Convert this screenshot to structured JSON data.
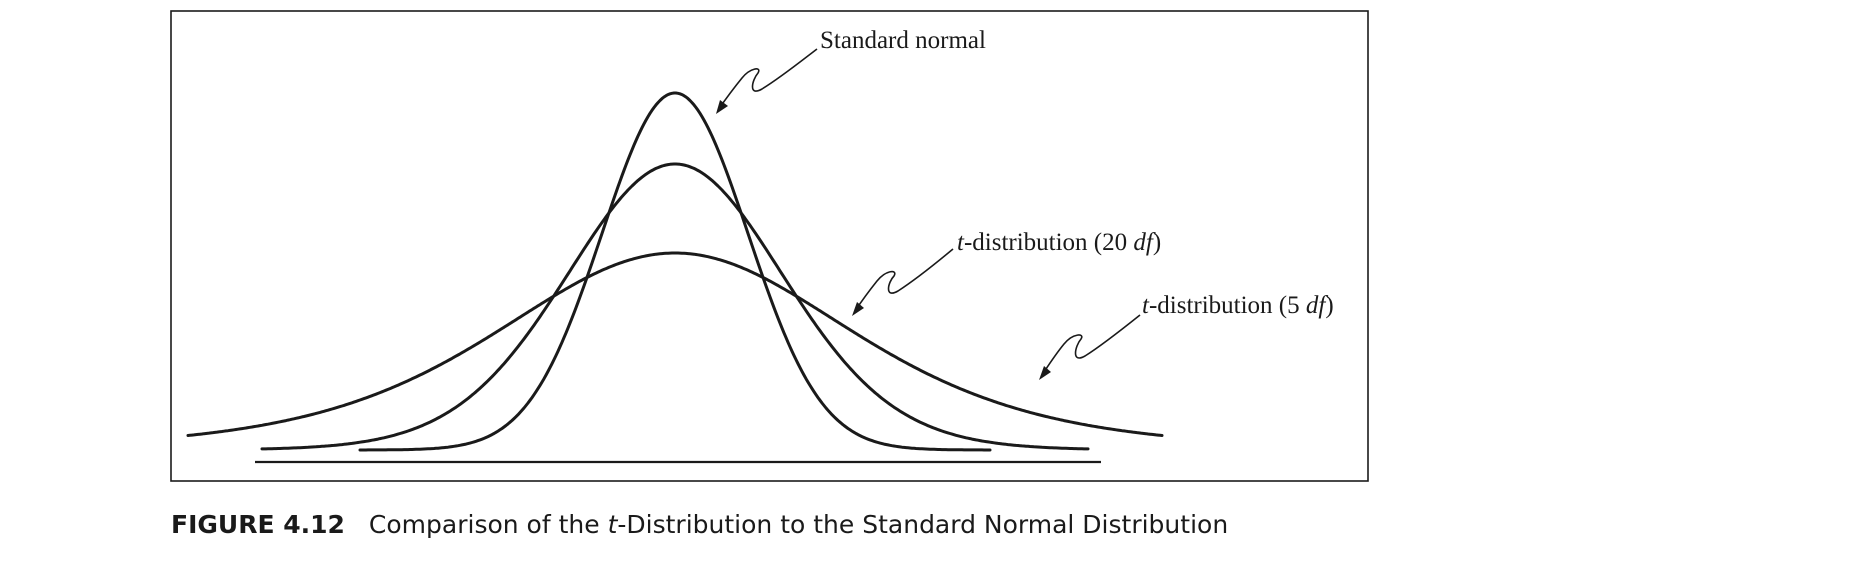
{
  "labels": {
    "standard_normal": "Standard normal",
    "t20": {
      "prefix": "t",
      "mid": "-distribution (20 ",
      "df": "df",
      "close": ")"
    },
    "t5": {
      "prefix": "t",
      "mid": "-distribution (5 ",
      "df": "df",
      "close": ")"
    }
  },
  "caption": {
    "number": "FIGURE 4.12",
    "pre": "Comparison of the ",
    "italic": "t",
    "post": "-Distribution to the Standard Normal Distribution"
  },
  "chart_data": {
    "type": "line",
    "series": [
      {
        "name": "Standard normal",
        "df": null
      },
      {
        "name": "t-distribution (20 df)",
        "df": 20
      },
      {
        "name": "t-distribution (5 df)",
        "df": 5
      }
    ],
    "grid": false
  }
}
